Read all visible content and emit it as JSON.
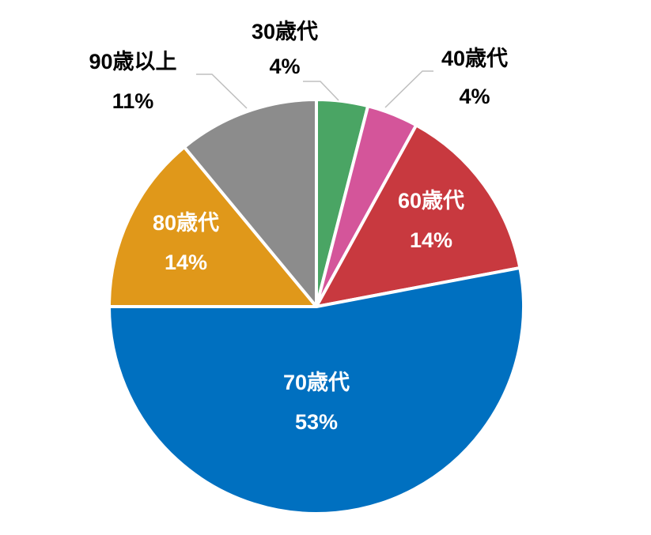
{
  "chart_data": {
    "type": "pie",
    "categories": [
      "30歳代",
      "40歳代",
      "60歳代",
      "70歳代",
      "80歳代",
      "90歳以上"
    ],
    "values": [
      4,
      4,
      14,
      53,
      14,
      11
    ],
    "value_labels": [
      "4%",
      "4%",
      "14%",
      "53%",
      "14%",
      "11%"
    ],
    "colors": [
      "#4aa564",
      "#d4559a",
      "#c8393f",
      "#0070c0",
      "#e0981a",
      "#8c8c8c"
    ]
  }
}
